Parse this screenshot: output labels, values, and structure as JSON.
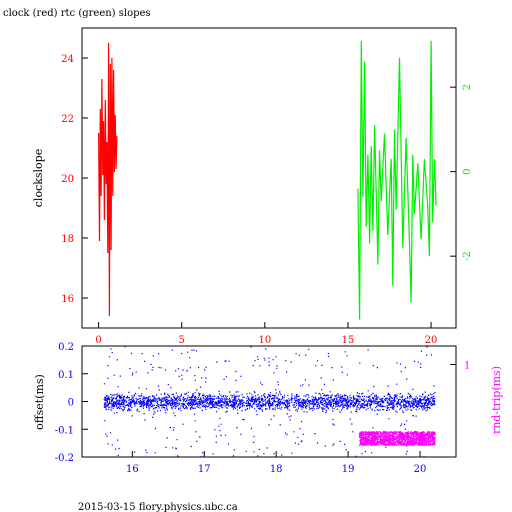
{
  "title": "clock (red) rtc (green) slopes",
  "footer": "2015-03-15 flory.physics.ubc.ca",
  "colors": {
    "clock": "#ff0000",
    "rtc": "#00ee00",
    "offset": "#0000ff",
    "rndtrip": "#ff00ff",
    "axis": "#000000"
  },
  "chart_data": [
    {
      "type": "line",
      "title": "clock (red) rtc (green) slopes",
      "ylabel": "clockslope",
      "xlim": [
        -1,
        21.5
      ],
      "ylim": [
        15,
        25
      ],
      "xticks": [
        0,
        5,
        10,
        15,
        20
      ],
      "yticks": [
        16,
        18,
        20,
        22,
        24
      ],
      "y2lim": [
        -3.7,
        3.4
      ],
      "y2ticks": [
        -2,
        0,
        2
      ],
      "series": [
        {
          "name": "clock",
          "axis": "left",
          "color": "#ff0000",
          "x": [
            0.0,
            0.05,
            0.1,
            0.15,
            0.2,
            0.25,
            0.3,
            0.35,
            0.4,
            0.45,
            0.5,
            0.55,
            0.6,
            0.65,
            0.7,
            0.75,
            0.8,
            0.85,
            0.9,
            0.95,
            1.0,
            1.05,
            1.1
          ],
          "y": [
            21.5,
            17.9,
            22.3,
            19.4,
            23.3,
            20.1,
            21.9,
            18.6,
            22.6,
            19.8,
            21.2,
            17.5,
            24.5,
            15.4,
            23.8,
            17.6,
            24.0,
            19.4,
            23.6,
            20.2,
            22.1,
            20.3,
            21.4
          ]
        },
        {
          "name": "rtc",
          "axis": "right",
          "color": "#00ee00",
          "x": [
            15.6,
            15.7,
            15.8,
            15.9,
            16.0,
            16.1,
            16.2,
            16.3,
            16.4,
            16.5,
            16.6,
            16.7,
            16.8,
            16.9,
            17.0,
            17.2,
            17.4,
            17.6,
            17.7,
            17.8,
            17.9,
            18.1,
            18.3,
            18.5,
            18.7,
            18.8,
            18.9,
            19.0,
            19.2,
            19.4,
            19.6,
            19.8,
            19.9,
            20.0,
            20.1,
            20.2,
            20.3
          ],
          "y": [
            -0.4,
            -3.5,
            3.1,
            -0.6,
            2.6,
            -1.3,
            0.4,
            -1.7,
            0.6,
            -1.4,
            1.1,
            -0.5,
            -2.2,
            0.5,
            -0.7,
            0.9,
            -1.5,
            0.3,
            -2.7,
            1.0,
            -0.9,
            2.7,
            -1.8,
            0.8,
            -1.7,
            -3.1,
            0.4,
            -1.0,
            0.2,
            -1.6,
            0.3,
            -0.8,
            -2.0,
            3.1,
            -1.2,
            0.3,
            -0.8
          ]
        }
      ]
    },
    {
      "type": "scatter",
      "ylabel": "offset(ms)",
      "y2label": "rnd-trip(ms)",
      "xlim": [
        15.3,
        20.5
      ],
      "ylim": [
        -0.2,
        0.2
      ],
      "xticks": [
        16,
        17,
        18,
        19,
        20
      ],
      "yticks": [
        -0.2,
        -0.1,
        0,
        0.1,
        0.2
      ],
      "y2lim": [
        0.25,
        1.15
      ],
      "y2ticks": [
        1
      ],
      "series": [
        {
          "name": "offset",
          "axis": "left",
          "color": "#0000ff",
          "x_range": [
            15.6,
            20.2
          ],
          "center": 0.0,
          "band": [
            -0.03,
            0.03
          ],
          "outlier_range": [
            -0.2,
            0.2
          ]
        },
        {
          "name": "rnd-trip",
          "axis": "right",
          "color": "#ff00ff",
          "x_range": [
            19.15,
            20.2
          ],
          "band": [
            0.35,
            0.46
          ]
        }
      ]
    }
  ]
}
